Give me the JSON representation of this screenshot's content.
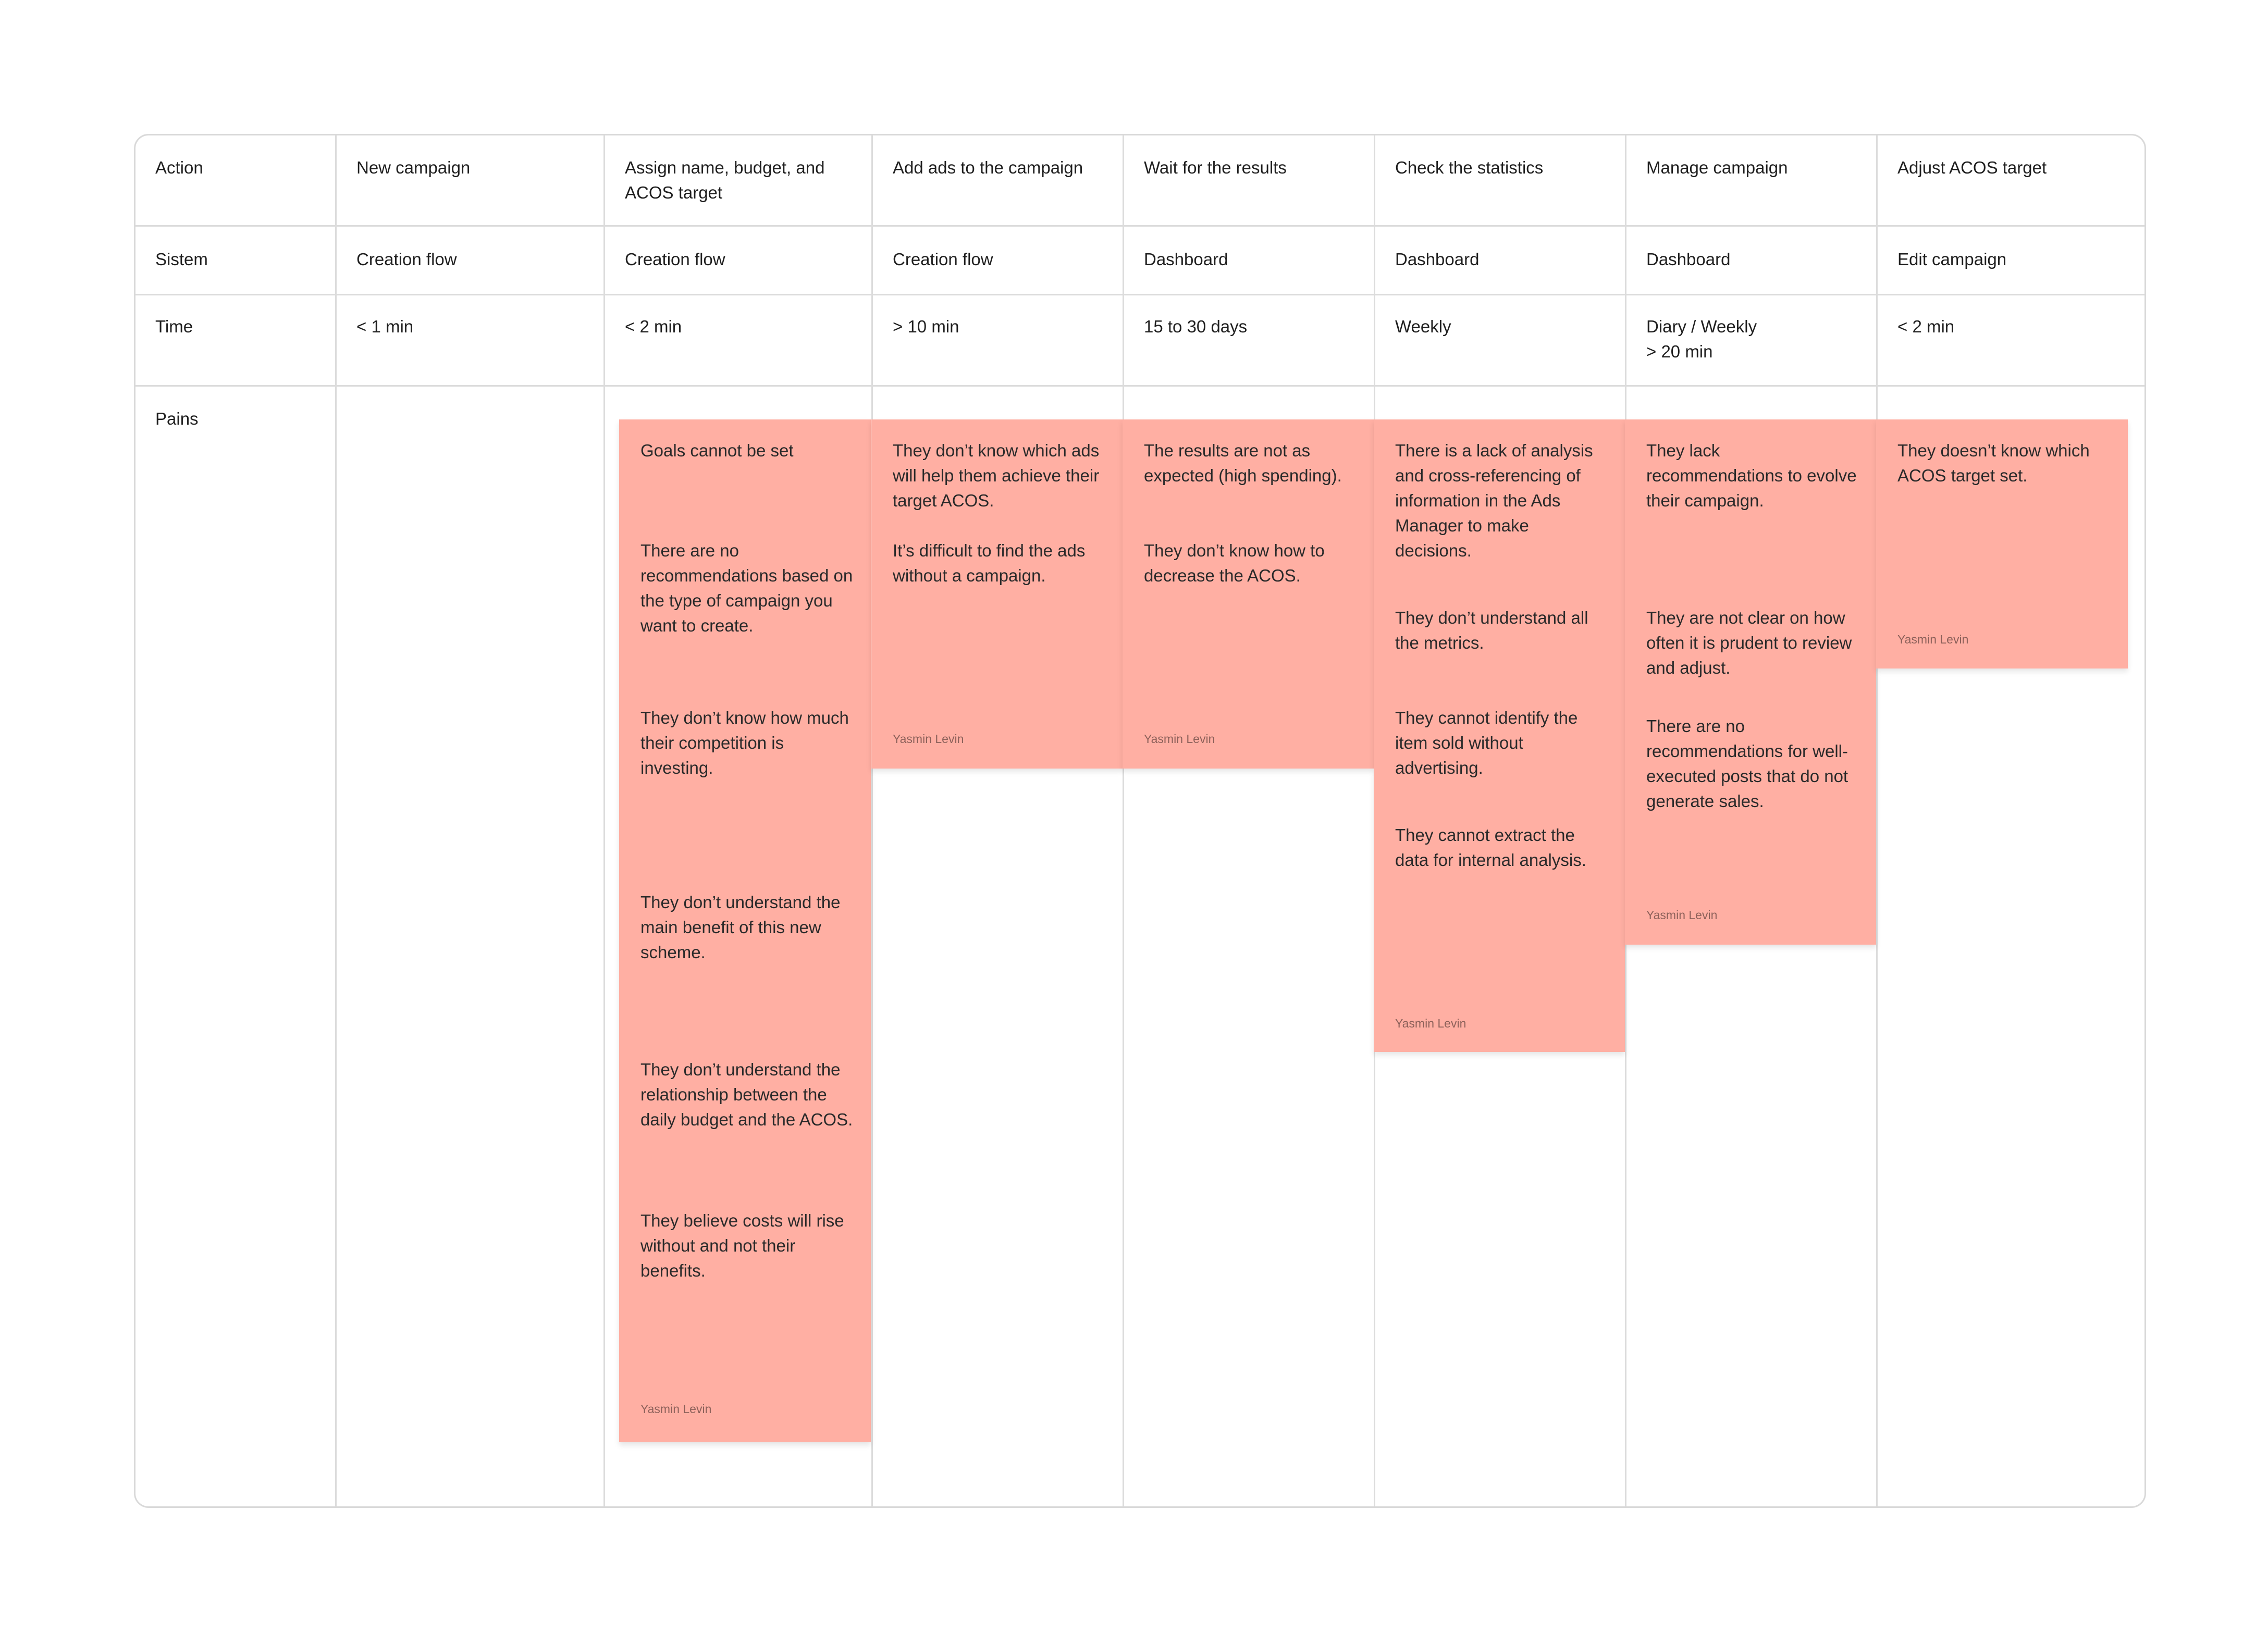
{
  "rows": {
    "action": {
      "label": "Action",
      "values": [
        "New campaign",
        "Assign name, budget, and ACOS target",
        "Add ads to the campaign",
        "Wait for the results",
        "Check the statistics",
        "Manage campaign",
        "Adjust ACOS target"
      ]
    },
    "sistem": {
      "label": "Sistem",
      "values": [
        "Creation flow",
        "Creation flow",
        "Creation flow",
        "Dashboard",
        "Dashboard",
        "Dashboard",
        "Edit campaign"
      ]
    },
    "time": {
      "label": "Time",
      "values": [
        "< 1 min",
        "< 2 min",
        "> 10 min",
        "15 to 30 days",
        "Weekly",
        "Diary / Weekly\n> 20 min",
        "< 2 min"
      ]
    },
    "pains": {
      "label": "Pains"
    }
  },
  "notes": {
    "col1": {
      "items": [
        "Goals cannot be set",
        "There are no recommendations based on the type of campaign you want to create.",
        "They don’t know how much their competition is investing.",
        "They don’t understand the main benefit of this new scheme.",
        "They don’t understand the relationship between the daily budget and the ACOS.",
        "They believe costs will rise without and not their benefits."
      ],
      "author": "Yasmin Levin"
    },
    "col2": {
      "items": [
        "They don’t know which ads will help them achieve their target ACOS.",
        "It’s difficult to find the ads without a campaign."
      ],
      "author": "Yasmin Levin"
    },
    "col3": {
      "items": [
        "The results are not as expected (high spending).",
        "They don’t know how to decrease the ACOS."
      ],
      "author": "Yasmin Levin"
    },
    "col4": {
      "items": [
        "There is a lack of analysis and cross-referencing of information in the Ads Manager to make decisions.",
        "They don’t understand all the metrics.",
        "They cannot identify the item sold without advertising.",
        "They cannot extract the data for internal analysis."
      ],
      "author": "Yasmin Levin"
    },
    "col5": {
      "items": [
        "They lack recommendations to evolve their campaign.",
        "They are not clear on how often it is prudent to review and adjust.",
        "There are no recommendations for well-executed posts that do not generate sales."
      ],
      "author": "Yasmin Levin"
    },
    "col6": {
      "items": [
        "They doesn’t know which ACOS target set."
      ],
      "author": "Yasmin Levin"
    }
  },
  "colors": {
    "note_fill": "#ffafa3",
    "grid_line": "#dcdcdc",
    "board_border": "#d9d9d9"
  }
}
